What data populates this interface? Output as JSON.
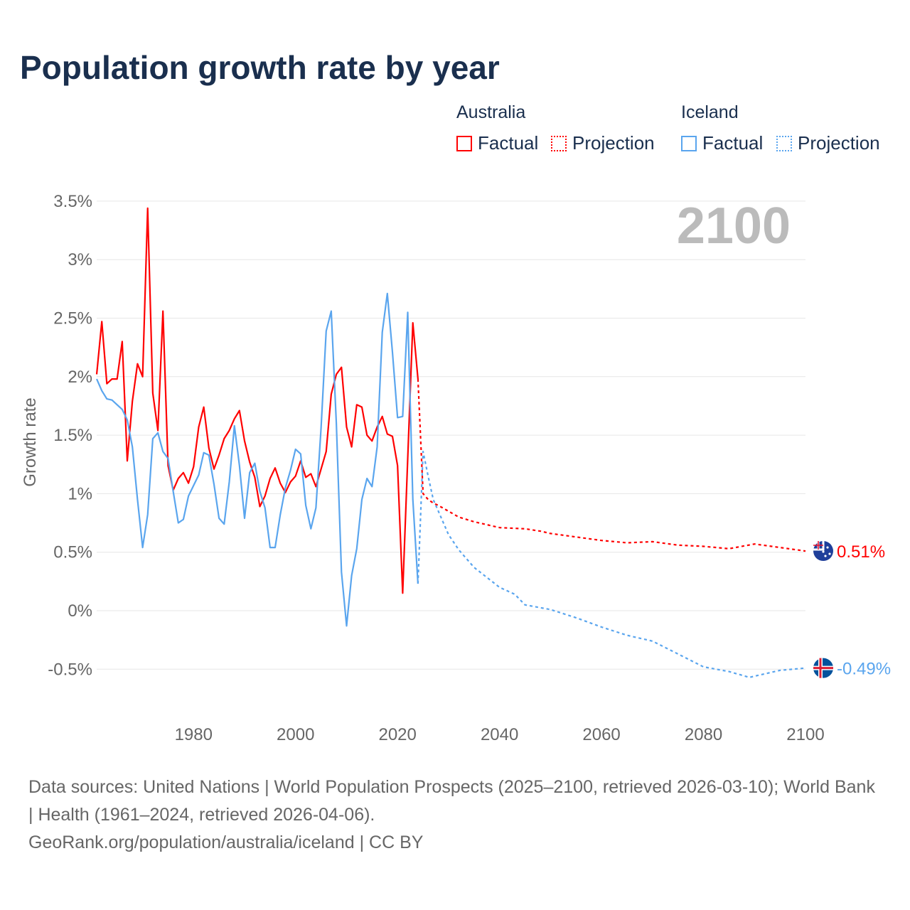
{
  "title": "Population growth rate by year",
  "legend": {
    "groups": [
      {
        "name": "Australia",
        "factual": "Factual",
        "projection": "Projection",
        "color": "#ff0000"
      },
      {
        "name": "Iceland",
        "factual": "Factual",
        "projection": "Projection",
        "color": "#5aa5ee"
      }
    ]
  },
  "year_label": "2100",
  "end_labels": {
    "australia": "0.51%",
    "iceland": "-0.49%"
  },
  "sources": {
    "line1": "Data sources: United Nations | World Population Prospects (2025–2100, retrieved 2026-03-10); World Bank | Health (1961–2024, retrieved 2026-04-06).",
    "line2": "GeoRank.org/population/australia/iceland | CC BY"
  },
  "chart_data": {
    "type": "line",
    "title": "Population growth rate by year",
    "xlabel": "",
    "ylabel": "Growth rate",
    "xlim": [
      1961,
      2100
    ],
    "ylim": [
      -0.75,
      3.6
    ],
    "xticks": [
      1980,
      2000,
      2020,
      2040,
      2060,
      2080,
      2100
    ],
    "xtick_labels": [
      "1980",
      "2000",
      "2020",
      "2040",
      "2060",
      "2080",
      "2100"
    ],
    "yticks": [
      -0.5,
      0,
      0.5,
      1,
      1.5,
      2,
      2.5,
      3,
      3.5
    ],
    "ytick_labels": [
      "-0.5%",
      "0%",
      "0.5%",
      "1%",
      "1.5%",
      "2%",
      "2.5%",
      "3%",
      "3.5%"
    ],
    "grid": true,
    "legend_position": "top-right",
    "series": [
      {
        "name": "Australia Factual",
        "color": "#ff0000",
        "dash": false,
        "x": [
          1961,
          1962,
          1963,
          1964,
          1965,
          1966,
          1967,
          1968,
          1969,
          1970,
          1971,
          1972,
          1973,
          1974,
          1975,
          1976,
          1977,
          1978,
          1979,
          1980,
          1981,
          1982,
          1983,
          1984,
          1985,
          1986,
          1987,
          1988,
          1989,
          1990,
          1991,
          1992,
          1993,
          1994,
          1995,
          1996,
          1997,
          1998,
          1999,
          2000,
          2001,
          2002,
          2003,
          2004,
          2005,
          2006,
          2007,
          2008,
          2009,
          2010,
          2011,
          2012,
          2013,
          2014,
          2015,
          2016,
          2017,
          2018,
          2019,
          2020,
          2021,
          2022,
          2023,
          2024
        ],
        "y": [
          2.02,
          2.47,
          1.94,
          1.98,
          1.98,
          2.3,
          1.28,
          1.79,
          2.11,
          2.0,
          3.44,
          1.86,
          1.54,
          2.56,
          1.24,
          1.03,
          1.13,
          1.18,
          1.09,
          1.23,
          1.57,
          1.74,
          1.39,
          1.21,
          1.33,
          1.47,
          1.54,
          1.64,
          1.71,
          1.45,
          1.27,
          1.14,
          0.89,
          0.98,
          1.13,
          1.22,
          1.09,
          1.01,
          1.1,
          1.15,
          1.28,
          1.14,
          1.17,
          1.06,
          1.21,
          1.36,
          1.85,
          2.02,
          2.08,
          1.57,
          1.4,
          1.76,
          1.74,
          1.5,
          1.45,
          1.57,
          1.66,
          1.51,
          1.49,
          1.24,
          0.15,
          1.3,
          2.46,
          1.98
        ]
      },
      {
        "name": "Australia Projection",
        "color": "#ff0000",
        "dash": true,
        "x": [
          2024,
          2025,
          2026,
          2027,
          2028,
          2030,
          2032,
          2035,
          2040,
          2045,
          2048,
          2050,
          2055,
          2060,
          2065,
          2070,
          2075,
          2080,
          2085,
          2090,
          2095,
          2100
        ],
        "y": [
          1.98,
          1.0,
          0.95,
          0.92,
          0.9,
          0.85,
          0.8,
          0.76,
          0.71,
          0.7,
          0.68,
          0.66,
          0.63,
          0.6,
          0.58,
          0.59,
          0.56,
          0.55,
          0.53,
          0.57,
          0.54,
          0.51
        ]
      },
      {
        "name": "Iceland Factual",
        "color": "#5aa5ee",
        "dash": false,
        "x": [
          1961,
          1962,
          1963,
          1964,
          1965,
          1966,
          1967,
          1968,
          1969,
          1970,
          1971,
          1972,
          1973,
          1974,
          1975,
          1976,
          1977,
          1978,
          1979,
          1980,
          1981,
          1982,
          1983,
          1984,
          1985,
          1986,
          1987,
          1988,
          1989,
          1990,
          1991,
          1992,
          1993,
          1994,
          1995,
          1996,
          1997,
          1998,
          1999,
          2000,
          2001,
          2002,
          2003,
          2004,
          2005,
          2006,
          2007,
          2008,
          2009,
          2010,
          2011,
          2012,
          2013,
          2014,
          2015,
          2016,
          2017,
          2018,
          2019,
          2020,
          2021,
          2022,
          2023,
          2024
        ],
        "y": [
          1.98,
          1.88,
          1.81,
          1.8,
          1.76,
          1.72,
          1.63,
          1.4,
          0.95,
          0.54,
          0.82,
          1.47,
          1.52,
          1.36,
          1.3,
          1.02,
          0.75,
          0.78,
          0.98,
          1.07,
          1.16,
          1.35,
          1.33,
          1.08,
          0.79,
          0.74,
          1.1,
          1.58,
          1.24,
          0.79,
          1.18,
          1.26,
          1.02,
          0.88,
          0.54,
          0.54,
          0.82,
          1.05,
          1.2,
          1.38,
          1.34,
          0.9,
          0.7,
          0.88,
          1.56,
          2.39,
          2.56,
          1.6,
          0.33,
          -0.13,
          0.3,
          0.53,
          0.95,
          1.13,
          1.06,
          1.4,
          2.38,
          2.71,
          2.21,
          1.65,
          1.66,
          2.55,
          0.95,
          0.23
        ]
      },
      {
        "name": "Iceland Projection",
        "color": "#5aa5ee",
        "dash": true,
        "x": [
          2024,
          2025,
          2026,
          2027,
          2028,
          2030,
          2032,
          2035,
          2040,
          2043,
          2045,
          2050,
          2055,
          2060,
          2065,
          2070,
          2075,
          2080,
          2085,
          2089,
          2095,
          2100
        ],
        "y": [
          0.23,
          1.36,
          1.15,
          0.95,
          0.85,
          0.65,
          0.52,
          0.37,
          0.2,
          0.14,
          0.05,
          0.01,
          -0.06,
          -0.14,
          -0.21,
          -0.26,
          -0.37,
          -0.48,
          -0.52,
          -0.57,
          -0.51,
          -0.49
        ]
      }
    ]
  }
}
